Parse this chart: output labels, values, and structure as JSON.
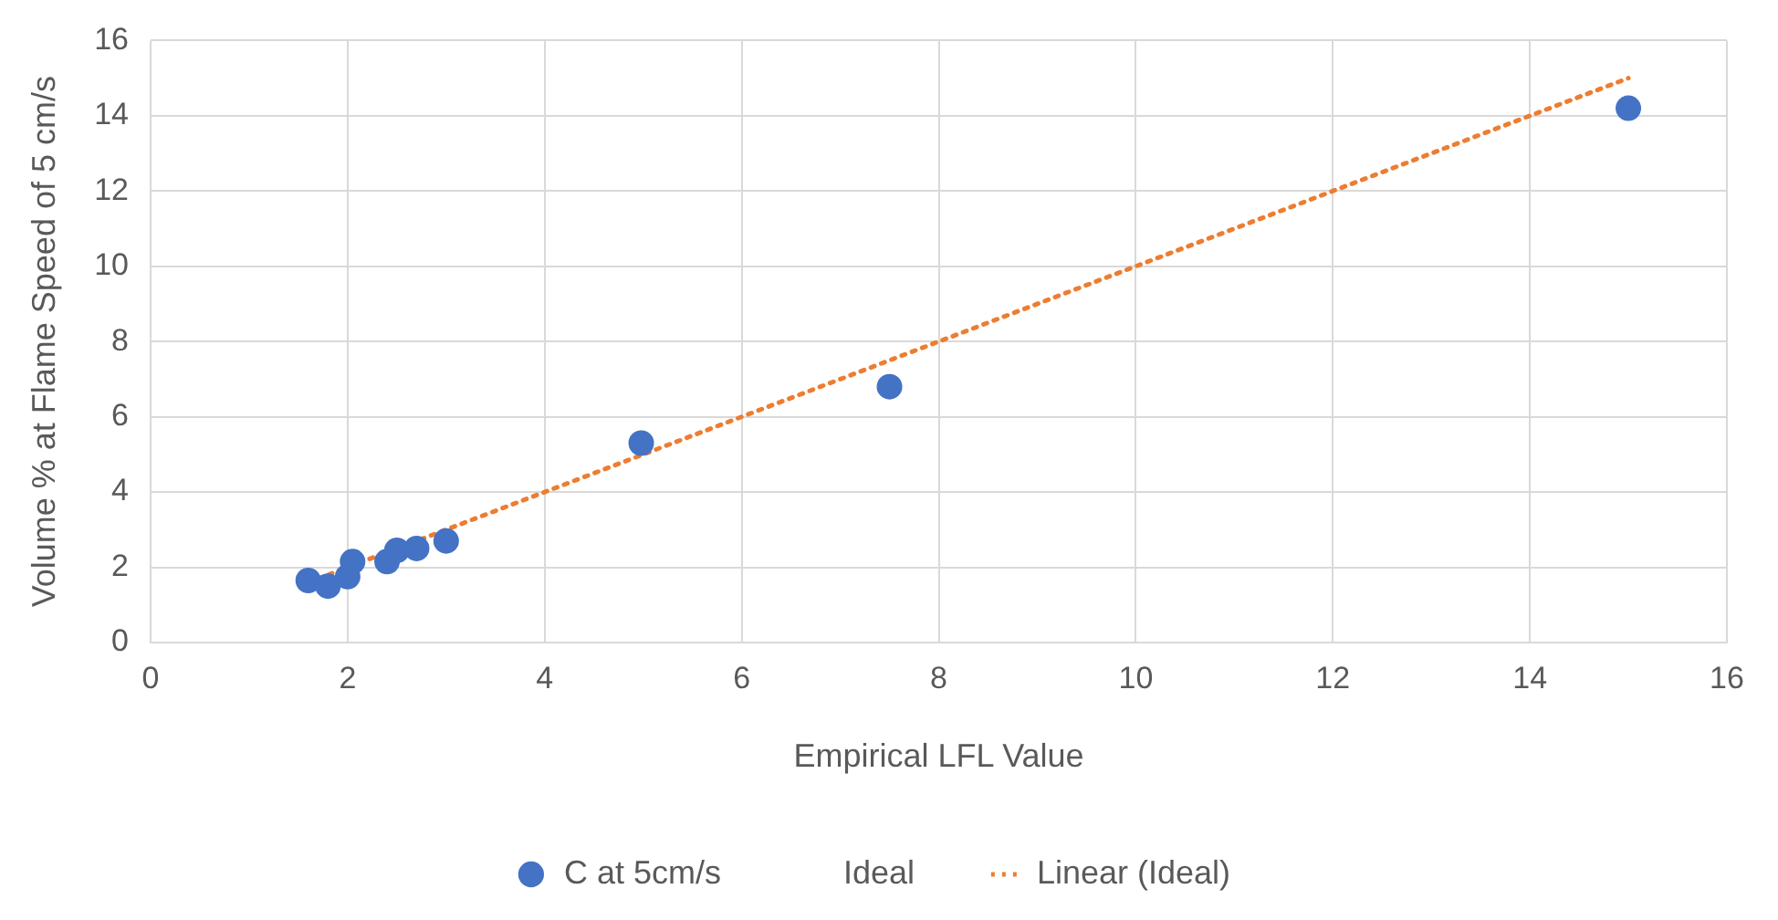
{
  "chart_data": {
    "type": "scatter",
    "xlabel": "Empirical LFL Value",
    "ylabel": "Volume % at Flame Speed of 5 cm/s",
    "xlim": [
      0,
      16
    ],
    "xticks": [
      0,
      2,
      4,
      6,
      8,
      10,
      12,
      14,
      16
    ],
    "ylim": [
      0,
      16
    ],
    "yticks": [
      0,
      2,
      4,
      6,
      8,
      10,
      12,
      14,
      16
    ],
    "grid": true,
    "legend": "bottom",
    "series": [
      {
        "name": "C at 5cm/s",
        "color": "#4472c4",
        "marker": "circle",
        "x": [
          1.6,
          1.8,
          2.0,
          2.05,
          2.4,
          2.5,
          2.7,
          3.0,
          4.98,
          7.5,
          15.0
        ],
        "values": [
          1.65,
          1.5,
          1.75,
          2.15,
          2.15,
          2.45,
          2.5,
          2.7,
          5.3,
          6.8,
          14.2
        ]
      },
      {
        "name": "Ideal",
        "type": "line",
        "marker": "none"
      },
      {
        "name": "Linear (Ideal)",
        "type": "line",
        "color": "#ed7d31",
        "marker": "none",
        "line_style": "dotted",
        "x": [
          1.6,
          15
        ],
        "values": [
          1.6,
          15
        ]
      }
    ]
  }
}
